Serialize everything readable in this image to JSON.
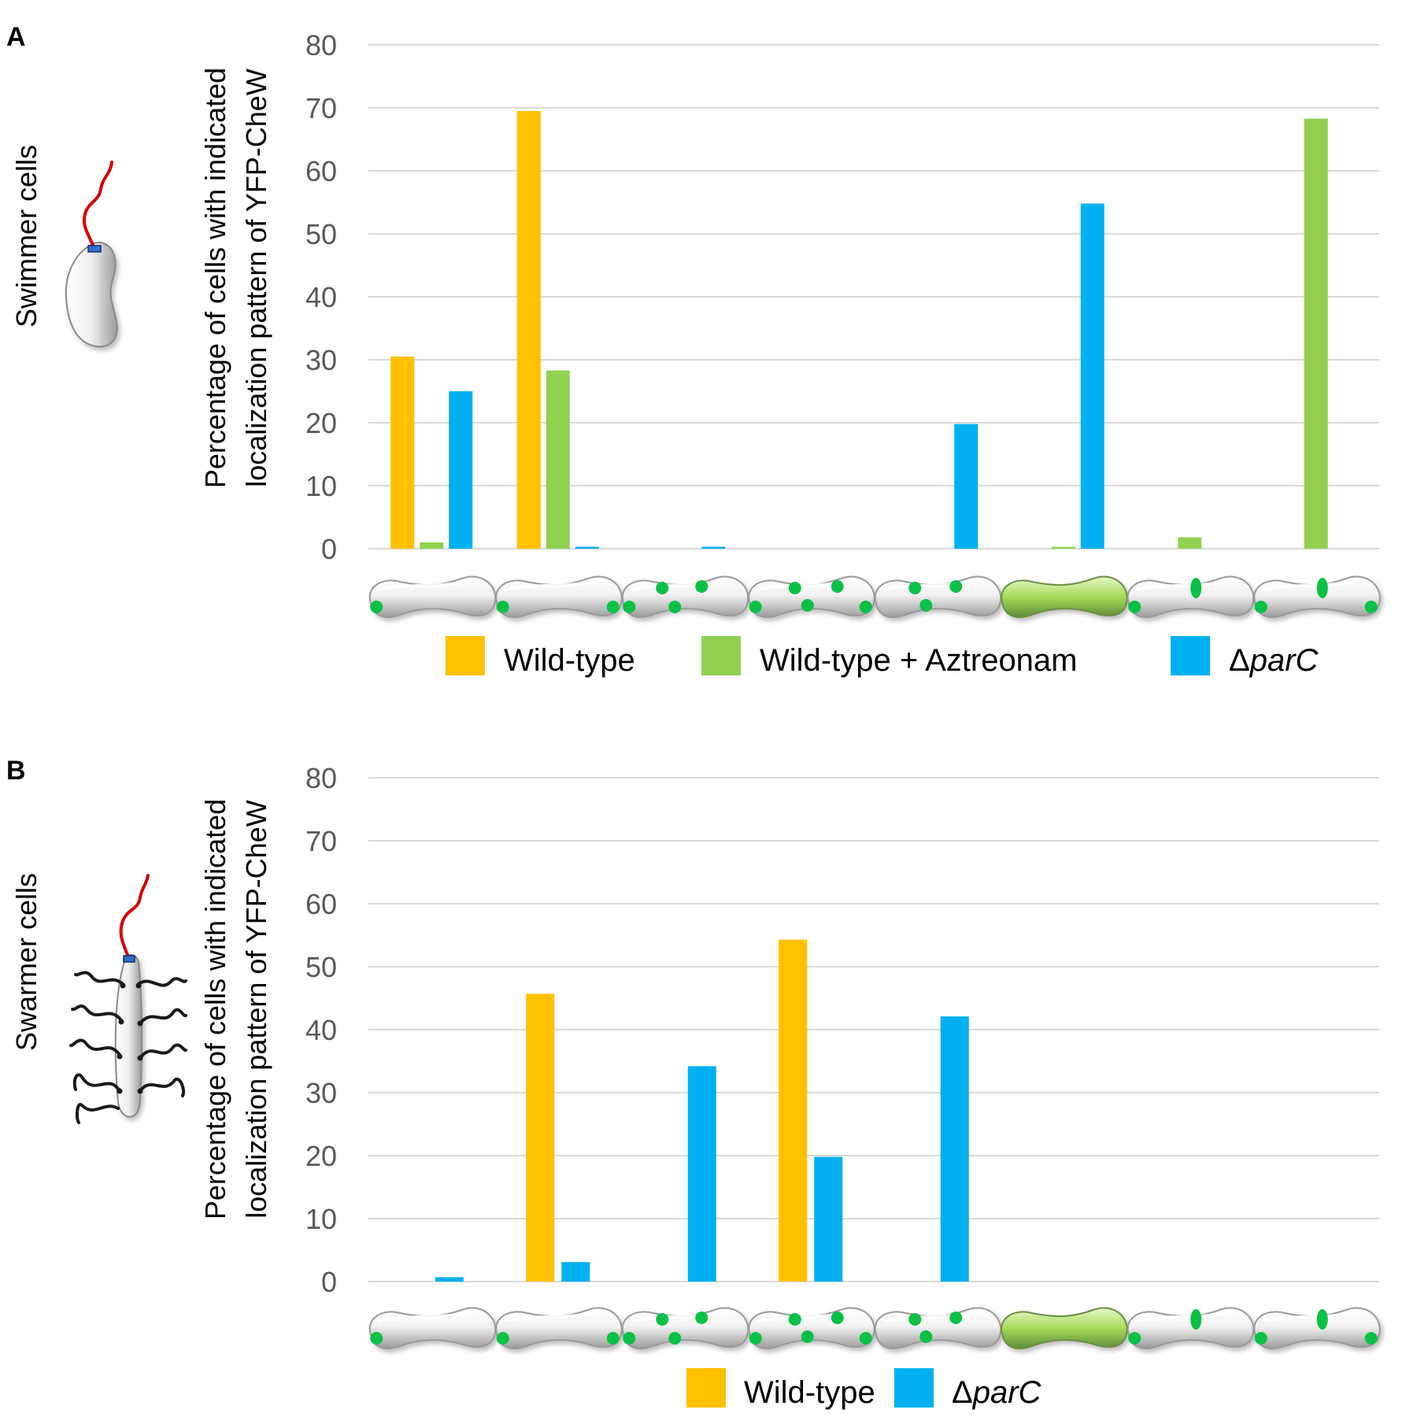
{
  "chart_data": [
    {
      "panel_label": "A",
      "type": "bar",
      "side_label": "Swimmer cells",
      "ylabel_line1": "Percentage of cells with indicated",
      "ylabel_line2": "localization pattern of YFP-CheW",
      "ylim": [
        0,
        80
      ],
      "yticks": [
        "0",
        "10",
        "20",
        "30",
        "40",
        "50",
        "60",
        "70",
        "80"
      ],
      "categories": [
        "unipolar",
        "bipolar",
        "lateral-3",
        "bipolar-lateral",
        "lateral-2",
        "diffuse",
        "pole-mid",
        "bipolar-mid"
      ],
      "series": [
        {
          "name": "Wild-type",
          "color": "#FFC000",
          "values": [
            30.5,
            69.5,
            0,
            0,
            0,
            0,
            0,
            0
          ]
        },
        {
          "name": "Wild-type + Aztreonam",
          "color": "#92D050",
          "values": [
            1,
            28.3,
            0,
            0,
            0,
            0.3,
            1.8,
            68.3
          ]
        },
        {
          "name": "ΔparC",
          "color": "#00B0F0",
          "values": [
            25,
            0.3,
            0.3,
            0,
            19.8,
            54.8,
            0,
            0
          ]
        }
      ],
      "legend": [
        {
          "prefix": "Wild-type",
          "italic": ""
        },
        {
          "prefix": "Wild-type + Aztreonam",
          "italic": ""
        },
        {
          "prefix": "Δ",
          "italic": "parC"
        }
      ]
    },
    {
      "panel_label": "B",
      "type": "bar",
      "side_label": "Swarmer cells",
      "ylabel_line1": "Percentage of cells with indicated",
      "ylabel_line2": "localization pattern of YFP-CheW",
      "ylim": [
        0,
        80
      ],
      "yticks": [
        "0",
        "10",
        "20",
        "30",
        "40",
        "50",
        "60",
        "70",
        "80"
      ],
      "categories": [
        "unipolar",
        "bipolar",
        "lateral-3",
        "bipolar-lateral",
        "lateral-2",
        "diffuse",
        "pole-mid",
        "bipolar-mid"
      ],
      "series": [
        {
          "name": "Wild-type",
          "color": "#FFC000",
          "values": [
            0,
            45.7,
            0,
            54.3,
            0,
            0,
            0,
            0
          ]
        },
        {
          "name": "ΔparC",
          "color": "#00B0F0",
          "values": [
            0.7,
            3.1,
            34.2,
            19.8,
            42.1,
            0,
            0,
            0
          ]
        }
      ],
      "legend": [
        {
          "prefix": "Wild-type",
          "italic": ""
        },
        {
          "prefix": "Δ",
          "italic": "parC"
        }
      ]
    }
  ],
  "colors": {
    "grid": "#d9d9d9",
    "tick": "#595959",
    "spot": "#0bc046",
    "flagellum": "#d40000",
    "pili": "#1a1a1a"
  }
}
